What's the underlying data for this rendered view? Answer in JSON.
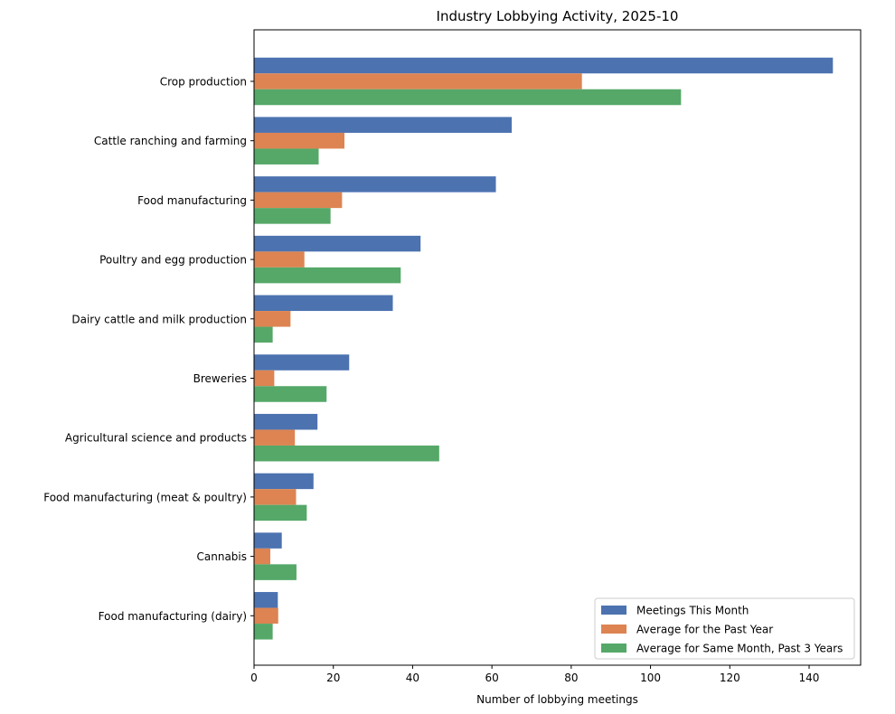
{
  "chart_data": {
    "type": "bar",
    "orientation": "horizontal",
    "title": "Industry Lobbying Activity, 2025-10",
    "xlabel": "Number of lobbying meetings",
    "ylabel": "",
    "xlim": [
      0,
      153
    ],
    "xticks": [
      0,
      20,
      40,
      60,
      80,
      100,
      120,
      140
    ],
    "grid": false,
    "legend_position": "lower-right",
    "categories": [
      "Crop production",
      "Cattle ranching and farming",
      "Food manufacturing",
      "Poultry and egg production",
      "Dairy cattle and milk production",
      "Breweries",
      "Agricultural science and products",
      "Food manufacturing (meat & poultry)",
      "Cannabis",
      "Food manufacturing (dairy)"
    ],
    "series": [
      {
        "name": "Meetings This Month",
        "color": "#4c72b0",
        "values": [
          146,
          65,
          61,
          42,
          35,
          24,
          16,
          15,
          7,
          6
        ]
      },
      {
        "name": "Average for the Past Year",
        "color": "#dd8452",
        "values": [
          82.7,
          22.8,
          22.2,
          12.7,
          9.2,
          5.1,
          10.3,
          10.6,
          4.1,
          6.1
        ]
      },
      {
        "name": "Average for Same Month, Past 3 Years",
        "color": "#55a868",
        "values": [
          107.7,
          16.3,
          19.3,
          37.0,
          4.7,
          18.3,
          46.7,
          13.3,
          10.7,
          4.7
        ]
      }
    ]
  }
}
